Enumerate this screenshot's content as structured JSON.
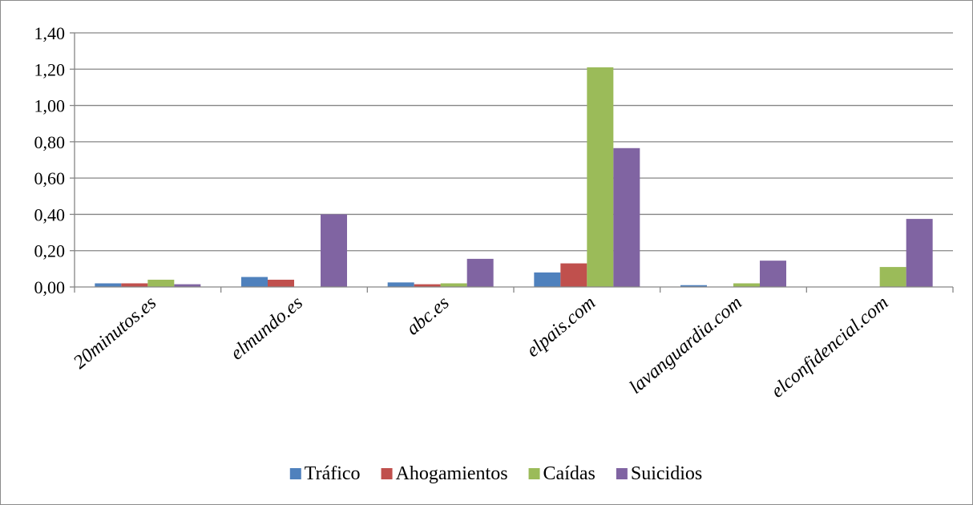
{
  "chart_data": {
    "type": "bar",
    "categories": [
      "20minutos.es",
      "elmundo.es",
      "abc.es",
      "elpais.com",
      "lavanguardia.com",
      "elconfidencial.com"
    ],
    "series": [
      {
        "name": "Tráfico",
        "color": "#4f81bd",
        "values": [
          0.02,
          0.055,
          0.025,
          0.08,
          0.01,
          0.0
        ]
      },
      {
        "name": "Ahogamientos",
        "color": "#c0504d",
        "values": [
          0.02,
          0.04,
          0.015,
          0.13,
          0.0,
          0.0
        ]
      },
      {
        "name": "Caídas",
        "color": "#9bbb59",
        "values": [
          0.04,
          0.0,
          0.02,
          1.21,
          0.02,
          0.11
        ]
      },
      {
        "name": "Suicidios",
        "color": "#8064a2",
        "values": [
          0.015,
          0.4,
          0.155,
          0.765,
          0.145,
          0.375
        ]
      }
    ],
    "ylim": [
      0,
      1.4
    ],
    "yticks": [
      "0,00",
      "0,20",
      "0,40",
      "0,60",
      "0,80",
      "1,00",
      "1,20",
      "1,40"
    ],
    "grid": true,
    "legend_position": "bottom",
    "title": "",
    "xlabel": "",
    "ylabel": ""
  }
}
